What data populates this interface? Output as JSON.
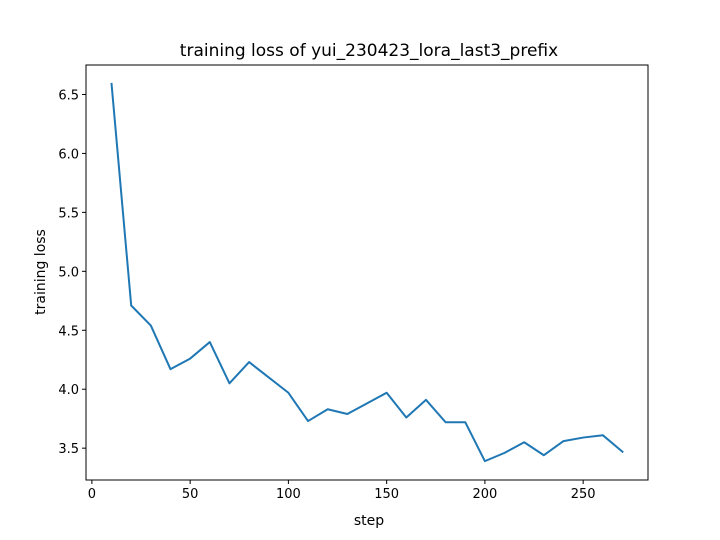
{
  "chart_data": {
    "type": "line",
    "title": "training loss of yui_230423_lora_last3_prefix",
    "xlabel": "step",
    "ylabel": "training loss",
    "xlim": [
      -3,
      283
    ],
    "ylim": [
      3.23,
      6.75
    ],
    "xticks": [
      0,
      50,
      100,
      150,
      200,
      250
    ],
    "yticks": [
      3.5,
      4.0,
      4.5,
      5.0,
      5.5,
      6.0,
      6.5
    ],
    "xtick_labels": [
      "0",
      "50",
      "100",
      "150",
      "200",
      "250"
    ],
    "ytick_labels": [
      "3.5",
      "4.0",
      "4.5",
      "5.0",
      "5.5",
      "6.0",
      "6.5"
    ],
    "grid": false,
    "line_color": "#1f77b4",
    "series": [
      {
        "x": [
          10,
          20,
          30,
          40,
          50,
          60,
          70,
          80,
          90,
          100,
          110,
          120,
          130,
          140,
          150,
          160,
          170,
          180,
          190,
          200,
          210,
          220,
          230,
          240,
          250,
          260,
          270
        ],
        "y": [
          6.59,
          4.71,
          4.54,
          4.17,
          4.26,
          4.4,
          4.05,
          4.23,
          4.1,
          3.97,
          3.73,
          3.83,
          3.79,
          3.88,
          3.97,
          3.76,
          3.91,
          3.72,
          3.72,
          3.39,
          3.46,
          3.55,
          3.44,
          3.56,
          3.59,
          3.61,
          3.47
        ]
      }
    ]
  }
}
